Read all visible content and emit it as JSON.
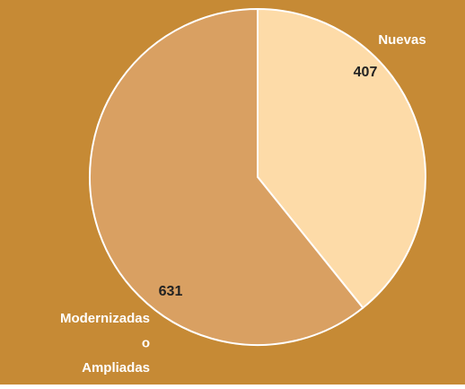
{
  "chart_data": {
    "type": "pie",
    "categories": [
      "Nuevas",
      "Modernizadas o Ampliadas"
    ],
    "values": [
      407,
      631
    ],
    "colors": [
      "#fddba8",
      "#d9a062"
    ],
    "background": "#c68a35"
  }
}
